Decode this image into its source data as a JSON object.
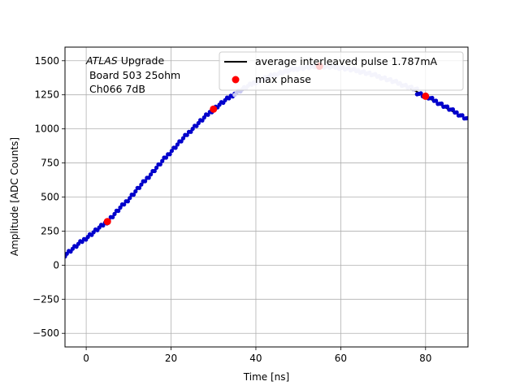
{
  "chart_data": {
    "type": "scatter",
    "xlabel": "Time [ns]",
    "ylabel": "Amplitude [ADC Counts]",
    "xlim": [
      -5,
      90
    ],
    "ylim": [
      -600,
      1600
    ],
    "xticks": [
      0,
      20,
      40,
      60,
      80
    ],
    "yticks": [
      -500,
      -250,
      0,
      250,
      500,
      750,
      1000,
      1250,
      1500
    ],
    "xtick_labels": [
      "0",
      "20",
      "40",
      "60",
      "80"
    ],
    "ytick_labels": [
      "−500",
      "−250",
      "0",
      "250",
      "500",
      "750",
      "1000",
      "1250",
      "1500"
    ],
    "grid": true,
    "legend_placement": "upper-right",
    "annotation": {
      "italic": "ATLAS",
      "rest": " Upgrade",
      "line2": " Board 503 25ohm",
      "line3": " Ch066 7dB"
    },
    "series": [
      {
        "name": "average interleaved pulse 1.787mA",
        "kind": "line",
        "color": "#000000",
        "x": [
          -5,
          0,
          5,
          10,
          15,
          20,
          25,
          30,
          35,
          40,
          45,
          50,
          55,
          60,
          65,
          70,
          75,
          80,
          85,
          90
        ],
        "y": [
          75,
          200,
          320,
          485,
          660,
          835,
          1000,
          1145,
          1260,
          1345,
          1405,
          1445,
          1460,
          1450,
          1420,
          1375,
          1320,
          1240,
          1150,
          1070
        ]
      },
      {
        "name": "",
        "kind": "points",
        "color": "#0000cc",
        "x": [
          -5,
          0,
          5,
          10,
          15,
          20,
          25,
          30,
          35
        ],
        "y": [
          75,
          200,
          320,
          485,
          660,
          835,
          1000,
          1145,
          1260
        ],
        "x2": [
          78,
          80,
          82,
          84,
          86,
          88,
          90
        ],
        "y2": [
          1265,
          1240,
          1210,
          1175,
          1140,
          1105,
          1070
        ]
      },
      {
        "name": "",
        "kind": "points-faded",
        "color": "#c8c8f0",
        "x": [
          35,
          40,
          45,
          50,
          55,
          60,
          65,
          70,
          75,
          78
        ],
        "y": [
          1260,
          1345,
          1405,
          1445,
          1460,
          1450,
          1420,
          1375,
          1320,
          1285
        ]
      },
      {
        "name": "max phase",
        "kind": "markers",
        "color": "#ff0000",
        "x": [
          5,
          30,
          55,
          80
        ],
        "y": [
          320,
          1145,
          1460,
          1240
        ]
      }
    ]
  }
}
